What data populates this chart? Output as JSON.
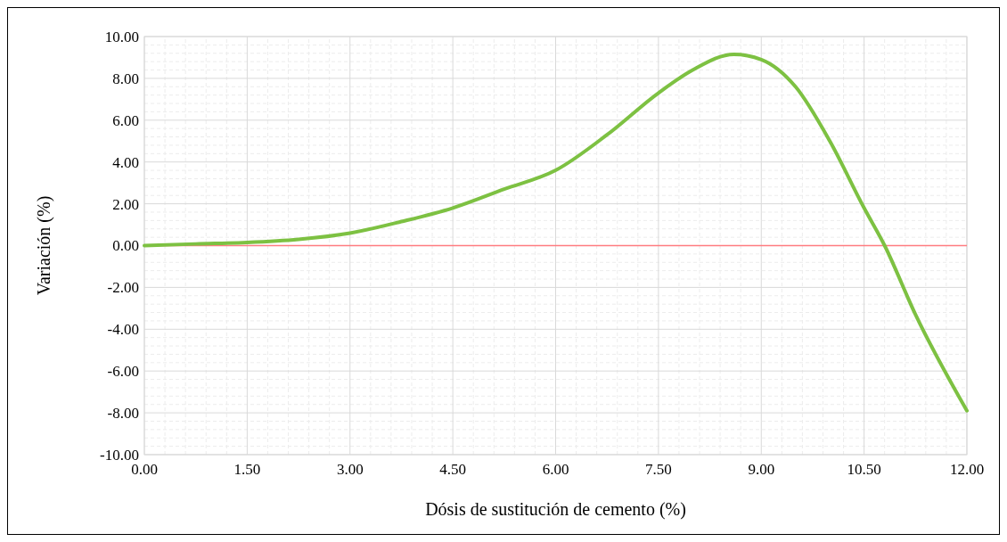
{
  "chart_data": {
    "type": "line",
    "xlabel": "Dósis de sustitución de cemento (%)",
    "ylabel": "Variación (%)",
    "x": [
      0,
      0.75,
      1.5,
      2.25,
      3,
      3.75,
      4.5,
      5.25,
      6,
      6.75,
      7.5,
      8,
      8.6,
      9,
      9.5,
      10,
      10.5,
      10.8,
      11.25,
      12
    ],
    "series": [
      {
        "color": "#7dc142",
        "values": [
          0,
          0.08,
          0.15,
          0.3,
          0.6,
          1.15,
          1.8,
          2.7,
          3.6,
          5.3,
          7.3,
          8.4,
          9.15,
          8.9,
          7.6,
          5.0,
          1.8,
          0,
          -3.3,
          -7.9
        ]
      }
    ],
    "xlim": [
      0,
      12
    ],
    "xticks": [
      {
        "value": 0,
        "label": "0.00"
      },
      {
        "value": 1.5,
        "label": "1.50"
      },
      {
        "value": 3,
        "label": "3.00"
      },
      {
        "value": 4.5,
        "label": "4.50"
      },
      {
        "value": 6,
        "label": "6.00"
      },
      {
        "value": 7.5,
        "label": "7.50"
      },
      {
        "value": 9,
        "label": "9.00"
      },
      {
        "value": 10.5,
        "label": "10.50"
      },
      {
        "value": 12,
        "label": "12.00"
      }
    ],
    "ylim": [
      -10,
      10
    ],
    "yticks": [
      {
        "value": -10,
        "label": "-10.00"
      },
      {
        "value": -8,
        "label": "-8.00"
      },
      {
        "value": -6,
        "label": "-6.00"
      },
      {
        "value": -4,
        "label": "-4.00"
      },
      {
        "value": -2,
        "label": "-2.00"
      },
      {
        "value": 0,
        "label": "0.00"
      },
      {
        "value": 2,
        "label": "2.00"
      },
      {
        "value": 4,
        "label": "4.00"
      },
      {
        "value": 6,
        "label": "6.00"
      },
      {
        "value": 8,
        "label": "8.00"
      },
      {
        "value": 10,
        "label": "10.00"
      }
    ],
    "ref_lines": [
      {
        "axis": "y",
        "value": 0,
        "color": "#ff7c80"
      }
    ],
    "grid": true,
    "marker": "none",
    "line_style": "solid"
  }
}
